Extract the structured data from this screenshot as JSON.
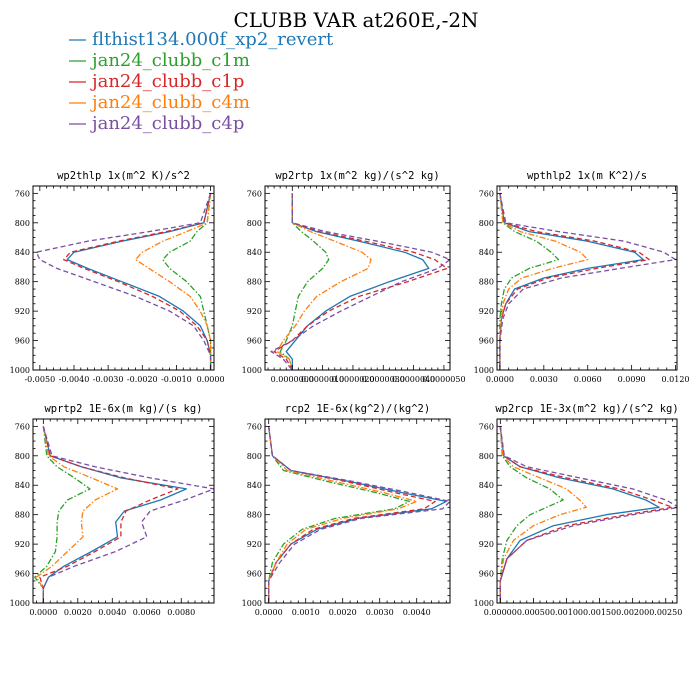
{
  "figure": {
    "title": "CLUBB VAR at260E,-2N",
    "legend": [
      {
        "label": "flthist134.000f_xp2_revert",
        "color": "#1f77b4",
        "dash": "solid"
      },
      {
        "label": "jan24_clubb_c1m",
        "color": "#2ca02c",
        "dash": "dashdot"
      },
      {
        "label": "jan24_clubb_c1p",
        "color": "#d62728",
        "dash": "dash"
      },
      {
        "label": "jan24_clubb_c4m",
        "color": "#ff7f0e",
        "dash": "dashdot"
      },
      {
        "label": "jan24_clubb_c4p",
        "color": "#7b4ea3",
        "dash": "dash"
      }
    ]
  },
  "chart_data": [
    {
      "type": "line",
      "title": "wp2thlp  1x(m^2 K)/s^2",
      "xlim": [
        -0.0052,
        0.0001
      ],
      "ylim": [
        1000,
        750
      ],
      "xticks": [
        -0.005,
        -0.004,
        -0.003,
        -0.002,
        -0.001,
        0.0
      ],
      "xticklabels": [
        "-0.0050",
        "-0.0040",
        "-0.0030",
        "-0.0020",
        "-0.0010",
        "0.0000"
      ],
      "yticks": [
        760,
        800,
        840,
        880,
        920,
        960,
        1000
      ],
      "y": [
        760,
        800,
        812,
        825,
        840,
        850,
        862,
        880,
        900,
        920,
        940,
        960,
        980,
        1000
      ],
      "series": [
        {
          "values": [
            0.0,
            -0.0002,
            -0.0012,
            -0.0026,
            -0.004,
            -0.0042,
            -0.0036,
            -0.0026,
            -0.0015,
            -0.0008,
            -0.0003,
            -0.0001,
            0.0,
            0.0
          ]
        },
        {
          "values": [
            0.0,
            -0.0001,
            -0.0004,
            -0.0006,
            -0.0012,
            -0.0014,
            -0.0012,
            -0.0007,
            -0.0003,
            -0.0002,
            -0.0001,
            0.0,
            0.0,
            0.0
          ]
        },
        {
          "values": [
            0.0,
            -0.0002,
            -0.0013,
            -0.0027,
            -0.0041,
            -0.0043,
            -0.0037,
            -0.0027,
            -0.0017,
            -0.0009,
            -0.0004,
            -0.0001,
            0.0,
            0.0
          ]
        },
        {
          "values": [
            0.0,
            -0.0001,
            -0.0007,
            -0.0014,
            -0.002,
            -0.0022,
            -0.0018,
            -0.0012,
            -0.0006,
            -0.0003,
            -0.0001,
            0.0,
            0.0,
            0.0
          ]
        },
        {
          "values": [
            0.0,
            -0.0003,
            -0.0018,
            -0.0036,
            -0.0051,
            -0.005,
            -0.0045,
            -0.0034,
            -0.0022,
            -0.0012,
            -0.0005,
            -0.0002,
            0.0,
            0.0
          ]
        }
      ]
    },
    {
      "type": "line",
      "title": "wp2rtp  1x(m^2 kg)/(s^2 kg)",
      "xlim": [
        -9e-07,
        5.2e-06
      ],
      "ylim": [
        1000,
        750
      ],
      "xticks": [
        0.0,
        1e-06,
        2e-06,
        3e-06,
        4e-06,
        5e-06
      ],
      "xticklabels": [
        "0.0000000",
        "0.0000010",
        "0.0000020",
        "0.0000030",
        "0.0000040",
        "0.0000050"
      ],
      "yticks": [
        760,
        800,
        840,
        880,
        920,
        960,
        1000
      ],
      "y": [
        760,
        800,
        812,
        825,
        840,
        850,
        862,
        880,
        900,
        920,
        940,
        960,
        975,
        985,
        1000
      ],
      "series": [
        {
          "values": [
            0.0,
            0.0,
            8e-07,
            2.2e-06,
            3.7e-06,
            4.3e-06,
            4.5e-06,
            3.2e-06,
            1.9e-06,
            1.1e-06,
            5e-07,
            1e-07,
            -2e-07,
            0.0,
            0.0
          ]
        },
        {
          "values": [
            0.0,
            0.0,
            3e-07,
            7e-07,
            1.1e-06,
            1.2e-06,
            1e-06,
            5e-07,
            2e-07,
            1e-07,
            0.0,
            -2e-07,
            -4e-07,
            -1e-07,
            0.0
          ]
        },
        {
          "values": [
            0.0,
            0.0,
            9e-07,
            2.4e-06,
            4e-06,
            4.7e-06,
            5.1e-06,
            3.8e-06,
            2.2e-06,
            1.2e-06,
            5e-07,
            0.0,
            -6e-07,
            -2e-07,
            0.0
          ]
        },
        {
          "values": [
            0.0,
            0.0,
            6e-07,
            1.4e-06,
            2.3e-06,
            2.6e-06,
            2.5e-06,
            1.6e-06,
            8e-07,
            4e-07,
            1e-07,
            -3e-07,
            -5e-07,
            -1e-07,
            0.0
          ]
        },
        {
          "values": [
            0.0,
            0.0,
            1.1e-06,
            2.8e-06,
            4.6e-06,
            5.2e-06,
            4.8e-06,
            3.6e-06,
            2.6e-06,
            1.6e-06,
            7e-07,
            0.0,
            -7e-07,
            -3e-07,
            0.0
          ]
        }
      ]
    },
    {
      "type": "line",
      "title": "wpthlp2  1x(m K^2)/s",
      "xlim": [
        -0.0002,
        0.0121
      ],
      "ylim": [
        1000,
        750
      ],
      "xticks": [
        0.0,
        0.003,
        0.006,
        0.009,
        0.012
      ],
      "xticklabels": [
        "0.0000",
        "0.0030",
        "0.0060",
        "0.0090",
        "0.0120"
      ],
      "yticks": [
        760,
        800,
        840,
        880,
        920,
        960,
        1000
      ],
      "y": [
        760,
        800,
        812,
        825,
        840,
        850,
        862,
        875,
        890,
        910,
        930,
        960,
        1000
      ],
      "series": [
        {
          "values": [
            0.0,
            0.0003,
            0.002,
            0.006,
            0.0092,
            0.0098,
            0.006,
            0.003,
            0.001,
            0.0004,
            0.0001,
            0.0,
            0.0
          ]
        },
        {
          "values": [
            0.0,
            0.0002,
            0.001,
            0.0025,
            0.0035,
            0.004,
            0.002,
            0.0008,
            0.0003,
            0.0001,
            0.0,
            0.0,
            0.0
          ]
        },
        {
          "values": [
            0.0,
            0.0003,
            0.0025,
            0.0065,
            0.0095,
            0.0102,
            0.0066,
            0.0033,
            0.0012,
            0.0004,
            0.0001,
            0.0,
            0.0
          ]
        },
        {
          "values": [
            0.0,
            0.0002,
            0.0014,
            0.0038,
            0.0055,
            0.006,
            0.0036,
            0.0015,
            0.0006,
            0.0002,
            0.0001,
            0.0,
            0.0
          ]
        },
        {
          "values": [
            0.0,
            0.0004,
            0.004,
            0.0085,
            0.0112,
            0.012,
            0.0082,
            0.0042,
            0.0016,
            0.0006,
            0.0002,
            0.0,
            0.0
          ]
        }
      ]
    },
    {
      "type": "line",
      "title": "wprtp2  1E-6x(m kg)/(s kg)",
      "xlim": [
        -0.0006,
        0.0099
      ],
      "ylim": [
        1000,
        750
      ],
      "xticks": [
        0.0,
        0.002,
        0.004,
        0.006,
        0.008
      ],
      "xticklabels": [
        "0.0000",
        "0.0020",
        "0.0040",
        "0.0060",
        "0.0080"
      ],
      "yticks": [
        760,
        800,
        840,
        880,
        920,
        960,
        1000
      ],
      "y": [
        760,
        800,
        815,
        830,
        845,
        860,
        875,
        890,
        910,
        930,
        950,
        965,
        980,
        1000
      ],
      "series": [
        {
          "values": [
            0.0,
            0.0004,
            0.0022,
            0.0045,
            0.0083,
            0.0068,
            0.0047,
            0.0042,
            0.0043,
            0.0028,
            0.0012,
            0.0003,
            0.0,
            0.0
          ]
        },
        {
          "values": [
            0.0,
            0.0002,
            0.0008,
            0.0018,
            0.0027,
            0.0014,
            0.0009,
            0.0008,
            0.0008,
            0.0007,
            0.0002,
            -0.0005,
            0.0,
            0.0
          ]
        },
        {
          "values": [
            0.0,
            0.0004,
            0.0022,
            0.0047,
            0.0078,
            0.0062,
            0.0048,
            0.0045,
            0.0045,
            0.003,
            0.0014,
            -0.0002,
            0.0,
            0.0
          ]
        },
        {
          "values": [
            0.0,
            0.0003,
            0.0012,
            0.0028,
            0.0043,
            0.003,
            0.0023,
            0.0022,
            0.0023,
            0.0014,
            0.0005,
            -0.0004,
            0.0,
            0.0
          ]
        },
        {
          "values": [
            0.0,
            0.0005,
            0.003,
            0.0062,
            0.0099,
            0.0082,
            0.0062,
            0.0057,
            0.006,
            0.0042,
            0.0018,
            0.0003,
            0.0,
            0.0
          ]
        }
      ]
    },
    {
      "type": "line",
      "title": "rcp2  1E-6x(kg^2)/(kg^2)",
      "xlim": [
        -0.0001,
        0.0049
      ],
      "ylim": [
        1000,
        750
      ],
      "xticks": [
        0.0,
        0.001,
        0.002,
        0.003,
        0.004
      ],
      "xticklabels": [
        "0.0000",
        "0.0010",
        "0.0020",
        "0.0030",
        "0.0040"
      ],
      "yticks": [
        760,
        800,
        840,
        880,
        920,
        960,
        1000
      ],
      "y": [
        760,
        800,
        820,
        835,
        850,
        862,
        872,
        885,
        900,
        920,
        945,
        970,
        1000
      ],
      "series": [
        {
          "values": [
            0.0,
            0.0001,
            0.0006,
            0.0022,
            0.0036,
            0.0048,
            0.0044,
            0.0024,
            0.0013,
            0.0006,
            0.0002,
            0.0,
            0.0
          ]
        },
        {
          "values": [
            0.0,
            0.0001,
            0.0004,
            0.0016,
            0.0029,
            0.0038,
            0.0034,
            0.0018,
            0.0009,
            0.0004,
            0.0001,
            0.0,
            0.0
          ]
        },
        {
          "values": [
            0.0,
            0.0001,
            0.0006,
            0.0021,
            0.0034,
            0.0045,
            0.0042,
            0.0023,
            0.0012,
            0.0006,
            0.0002,
            0.0,
            0.0
          ]
        },
        {
          "values": [
            0.0,
            0.0001,
            0.0005,
            0.0018,
            0.0031,
            0.004,
            0.0035,
            0.002,
            0.001,
            0.0005,
            0.0002,
            0.0,
            0.0
          ]
        },
        {
          "values": [
            0.0,
            0.0001,
            0.0006,
            0.0023,
            0.0038,
            0.0049,
            0.0047,
            0.0025,
            0.0014,
            0.0007,
            0.0003,
            0.0,
            0.0
          ]
        }
      ]
    },
    {
      "type": "line",
      "title": "wp2rcp  1E-3x(m^2 kg)/(s^2 kg)",
      "xlim": [
        -5e-05,
        0.00267
      ],
      "ylim": [
        1000,
        750
      ],
      "xticks": [
        0.0,
        0.0005,
        0.001,
        0.0015,
        0.002,
        0.0025
      ],
      "xticklabels": [
        "0.00000",
        "0.00050",
        "0.00100",
        "0.00150",
        "0.00200",
        "0.00250"
      ],
      "yticks": [
        760,
        800,
        840,
        880,
        920,
        960,
        1000
      ],
      "y": [
        760,
        800,
        815,
        830,
        845,
        860,
        870,
        880,
        895,
        915,
        940,
        970,
        1000
      ],
      "series": [
        {
          "values": [
            0.0,
            5e-05,
            0.0003,
            0.0009,
            0.0017,
            0.0022,
            0.0024,
            0.0016,
            0.0008,
            0.0003,
            0.0001,
            0.0,
            0.0
          ]
        },
        {
          "values": [
            0.0,
            3e-05,
            0.00015,
            0.0004,
            0.00075,
            0.00095,
            0.0007,
            0.00045,
            0.00025,
            0.0001,
            3e-05,
            0.0,
            0.0
          ]
        },
        {
          "values": [
            0.0,
            5e-05,
            0.0003,
            0.001,
            0.0018,
            0.0023,
            0.0026,
            0.0019,
            0.001,
            0.0004,
            0.0001,
            0.0,
            0.0
          ]
        },
        {
          "values": [
            0.0,
            4e-05,
            0.0002,
            0.0006,
            0.001,
            0.0012,
            0.0013,
            0.0009,
            0.0005,
            0.0002,
            5e-05,
            0.0,
            0.0
          ]
        },
        {
          "values": [
            0.0,
            6e-05,
            0.0004,
            0.0012,
            0.002,
            0.0025,
            0.0027,
            0.002,
            0.0011,
            0.0004,
            0.0001,
            0.0,
            0.0
          ]
        }
      ]
    }
  ]
}
